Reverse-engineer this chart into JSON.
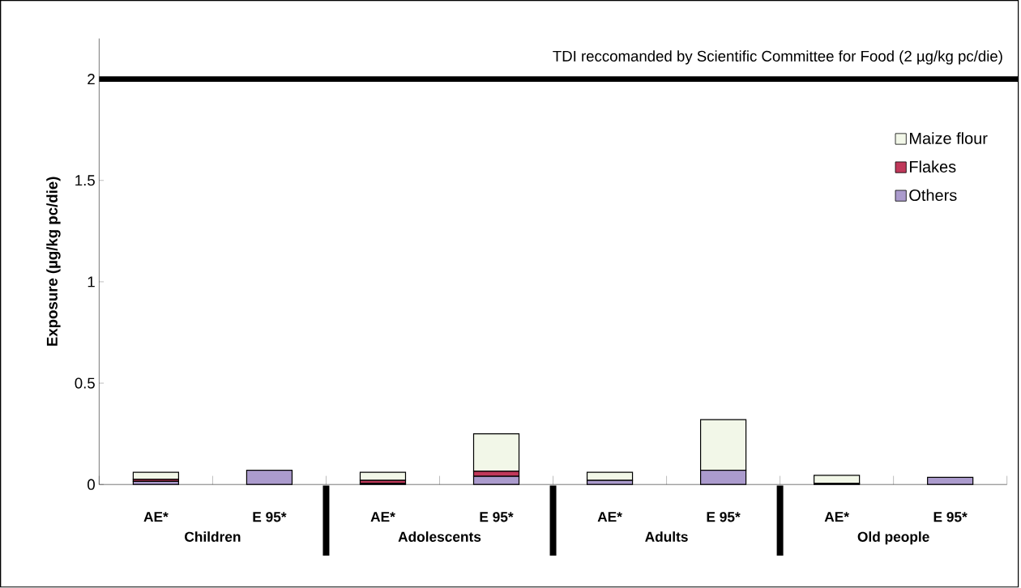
{
  "chart_data": {
    "type": "bar",
    "stacked": true,
    "ylabel": "Exposure (µg/kg pc/die)",
    "categories": [
      "AE*",
      "E 95*",
      "AE*",
      "E 95*",
      "AE*",
      "E 95*",
      "AE*",
      "E 95*"
    ],
    "series": [
      {
        "name": "Others",
        "color": "#ab9bcd",
        "values": [
          0.015,
          0.07,
          0.005,
          0.04,
          0.02,
          0.07,
          0.005,
          0.035
        ]
      },
      {
        "name": "Flakes",
        "color": "#c0385a",
        "values": [
          0.01,
          0,
          0.015,
          0.025,
          0,
          0,
          0,
          0
        ]
      },
      {
        "name": "Maize flour",
        "color": "#f2f7e8",
        "values": [
          0.035,
          0,
          0.04,
          0.185,
          0.04,
          0.25,
          0.04,
          0
        ]
      }
    ],
    "annotations": [
      "Children",
      "Adolescents",
      "Adults",
      "Old people"
    ],
    "ref_lines": [
      {
        "axis": "y",
        "value": 2,
        "label": "TDI reccomanded by Scientific Committee for Food (2 µg/kg pc/die)",
        "color": "#000000"
      }
    ],
    "ylim": [
      0,
      2.2
    ],
    "yticks": [
      0,
      0.5,
      1,
      1.5,
      2
    ],
    "grid": false,
    "legend": "right"
  }
}
